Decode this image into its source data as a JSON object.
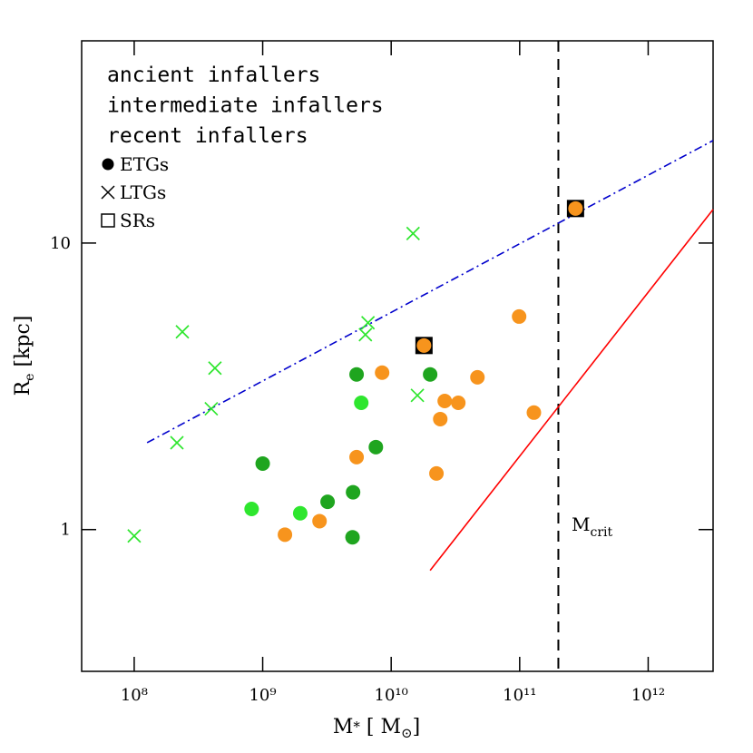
{
  "chart_data": {
    "type": "scatter",
    "x_label": {
      "main": "M",
      "sub": "*",
      "rest": " [ M",
      "sub2": "⊙",
      "end": "]"
    },
    "y_label": {
      "main": "R",
      "sub": "e",
      "rest": " [kpc]"
    },
    "xlog": true,
    "ylog": true,
    "xlim": [
      39000000,
      3200000000000
    ],
    "ylim": [
      0.32,
      50.8
    ],
    "xticks": [
      {
        "value": 100000000,
        "label": "10⁸"
      },
      {
        "value": 1000000000,
        "label": "10⁹"
      },
      {
        "value": 10000000000,
        "label": "10¹⁰"
      },
      {
        "value": 100000000000,
        "label": "10¹¹"
      },
      {
        "value": 1000000000000,
        "label": "10¹²"
      }
    ],
    "yticks": [
      1,
      10
    ],
    "color_legend": [
      {
        "name": "ancient infallers",
        "color": "#f7941d"
      },
      {
        "name": "intermediate infallers",
        "color": "#1fa51f"
      },
      {
        "name": "recent infallers",
        "color": "#2ee62e"
      }
    ],
    "marker_legend": [
      {
        "name": "ETGs",
        "marker": "circle"
      },
      {
        "name": "LTGs",
        "marker": "cross"
      },
      {
        "name": "SRs",
        "marker": "square"
      }
    ],
    "series": [
      {
        "color": "#000000",
        "marker": "square",
        "x": [
          18000000000,
          272000000000
        ],
        "y": [
          4.39,
          13.2
        ]
      },
      {
        "color": "#f7941d",
        "marker": "circle",
        "x": [
          1490000000,
          2770000000,
          5380000000,
          8500000000,
          18000000000,
          22500000000,
          24100000000,
          26100000000,
          33300000000,
          46900000000,
          99000000000,
          129000000000,
          272000000000
        ],
        "y": [
          0.96,
          1.07,
          1.79,
          3.53,
          4.39,
          1.57,
          2.43,
          2.81,
          2.77,
          3.4,
          5.54,
          2.56,
          13.2
        ]
      },
      {
        "color": "#1fa51f",
        "marker": "circle",
        "x": [
          1000000000,
          3200000000,
          5050000000,
          5000000000,
          5380000000,
          7600000000,
          20100000000
        ],
        "y": [
          1.7,
          1.25,
          1.35,
          0.94,
          3.48,
          1.94,
          3.48
        ]
      },
      {
        "color": "#2ee62e",
        "marker": "circle",
        "x": [
          820000000,
          1960000000,
          5850000000
        ],
        "y": [
          1.18,
          1.14,
          2.77
        ]
      },
      {
        "color": "#2ee62e",
        "marker": "cross",
        "x": [
          100000000,
          215000000,
          237000000,
          398000000,
          425000000,
          6300000000,
          6600000000,
          14800000000,
          16000000000
        ],
        "y": [
          0.95,
          2.01,
          4.9,
          2.64,
          3.66,
          4.79,
          5.27,
          10.8,
          2.94
        ]
      }
    ],
    "lines": [
      {
        "color": "#0000cc",
        "style": "dashdot",
        "x": [
          126000000,
          3200000000000
        ],
        "y": [
          2.01,
          22.8
        ]
      },
      {
        "color": "#ff0000",
        "style": "solid",
        "x": [
          20100000000,
          3200000000000
        ],
        "y": [
          0.72,
          13.1
        ]
      }
    ],
    "vline": {
      "x": 200000000000,
      "color": "#000000",
      "label": {
        "main": "M",
        "sub": "crit"
      }
    }
  }
}
